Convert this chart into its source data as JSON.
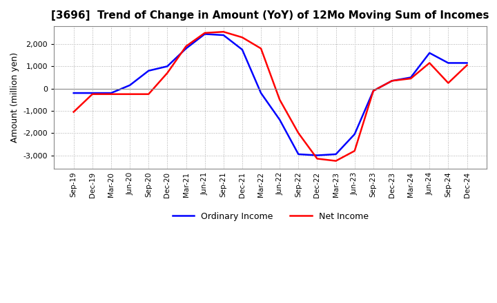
{
  "title": "[3696]  Trend of Change in Amount (YoY) of 12Mo Moving Sum of Incomes",
  "ylabel": "Amount (million yen)",
  "line_colors": {
    "ordinary": "#0000FF",
    "net": "#FF0000"
  },
  "legend_labels": {
    "ordinary": "Ordinary Income",
    "net": "Net Income"
  },
  "ylim": [
    -3600,
    2800
  ],
  "yticks": [
    -3000,
    -2000,
    -1000,
    0,
    1000,
    2000
  ],
  "x_labels": [
    "Sep-19",
    "Dec-19",
    "Mar-20",
    "Jun-20",
    "Sep-20",
    "Dec-20",
    "Mar-21",
    "Jun-21",
    "Sep-21",
    "Dec-21",
    "Mar-22",
    "Jun-22",
    "Sep-22",
    "Dec-22",
    "Mar-23",
    "Jun-23",
    "Sep-23",
    "Dec-23",
    "Mar-24",
    "Jun-24",
    "Sep-24",
    "Dec-24"
  ],
  "ordinary_income": [
    -200,
    -200,
    -200,
    150,
    800,
    1000,
    1800,
    2450,
    2400,
    1750,
    -200,
    -1400,
    -2950,
    -3000,
    -2950,
    -2050,
    -100,
    350,
    500,
    1600,
    1150,
    1150
  ],
  "net_income": [
    -1050,
    -250,
    -250,
    -250,
    -250,
    700,
    1900,
    2500,
    2550,
    2300,
    1800,
    -500,
    -2000,
    -3150,
    -3250,
    -2800,
    -100,
    350,
    450,
    1150,
    250,
    1050
  ]
}
